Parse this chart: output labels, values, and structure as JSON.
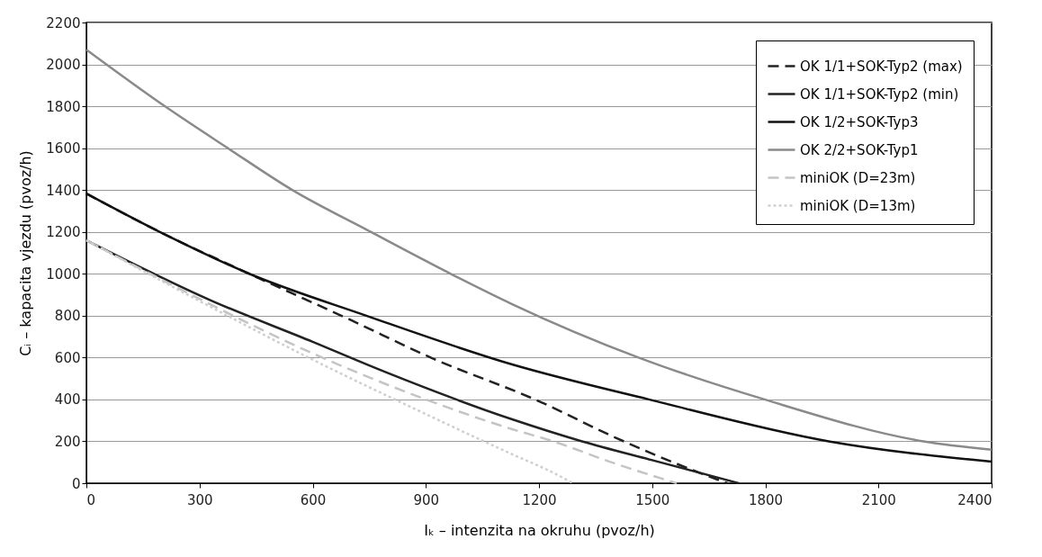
{
  "chart_data": {
    "type": "line",
    "xlabel": "Iₖ – intenzita na okruhu (pvoz/h)",
    "ylabel": "Cᵢ – kapacita vjezdu (pvoz/h)",
    "xlim": [
      0,
      2400
    ],
    "xticks": [
      0,
      300,
      600,
      900,
      1200,
      1500,
      1800,
      2100,
      2400
    ],
    "ylim": [
      0,
      2200
    ],
    "yticks": [
      0,
      200,
      400,
      600,
      800,
      1000,
      1200,
      1400,
      1600,
      1800,
      2000,
      2200
    ],
    "grid": "y",
    "legend": "top right",
    "marker": "none",
    "series": [
      {
        "name": "OK 1/1+SOK-Typ2 (max)",
        "color": "#222222",
        "line_style": "dashed",
        "x": [
          0,
          200,
          432,
          700,
          913,
          1198,
          1400,
          1631,
          1700
        ],
        "values": [
          1383,
          1195,
          1000,
          780,
          600,
          393,
          220,
          46,
          0
        ]
      },
      {
        "name": "OK 1/1+SOK-Typ2 (min)",
        "color": "#222222",
        "line_style": "solid",
        "x": [
          0,
          334,
          600,
          791,
          1129,
          1314,
          1500,
          1730
        ],
        "values": [
          1160,
          870,
          675,
          532,
          305,
          200,
          110,
          0
        ]
      },
      {
        "name": "OK 1/2+SOK-Typ3",
        "color": "#111111",
        "line_style": "solid",
        "x": [
          0,
          200,
          432,
          742,
          1129,
          1491,
          1968,
          2400
        ],
        "values": [
          1383,
          1195,
          1000,
          800,
          567,
          400,
          200,
          103
        ]
      },
      {
        "name": "OK 2/2+SOK-Typ1",
        "color": "#8a8a8a",
        "line_style": "solid",
        "x": [
          0,
          208,
          375,
          546,
          754,
          966,
          1129,
          1464,
          1798,
          2219,
          2400
        ],
        "values": [
          2070,
          1800,
          1600,
          1400,
          1200,
          1000,
          855,
          600,
          400,
          200,
          160
        ]
      },
      {
        "name": "miniOK (D=23m)",
        "color": "#c4c4c4",
        "line_style": "dashed",
        "x": [
          0,
          300,
          600,
          900,
          1129,
          1229,
          1400,
          1565
        ],
        "values": [
          1160,
          880,
          620,
          400,
          258,
          205,
          95,
          0
        ]
      },
      {
        "name": "miniOK (D=13m)",
        "color": "#cfcfcf",
        "line_style": "dotted",
        "x": [
          0,
          300,
          600,
          900,
          1129,
          1229,
          1290
        ],
        "values": [
          1160,
          870,
          590,
          330,
          138,
          58,
          0
        ]
      }
    ]
  }
}
